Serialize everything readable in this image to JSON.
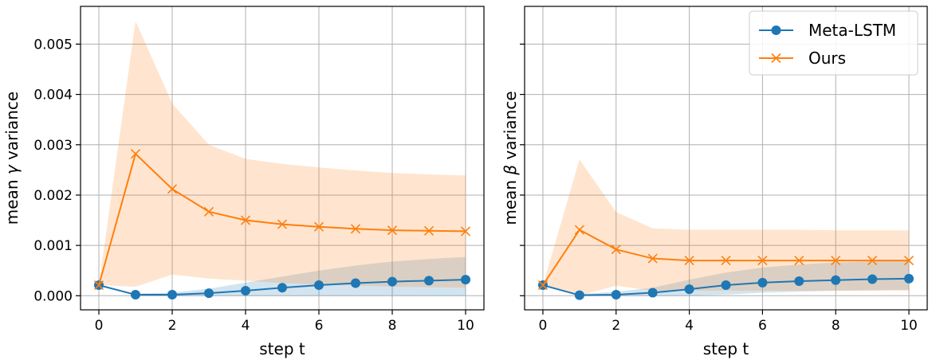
{
  "chart_data": [
    {
      "type": "line",
      "xlabel": "step t",
      "ylabel_prefix": "mean ",
      "ylabel_symbol": "γ",
      "ylabel_suffix": " variance",
      "xlim": [
        -0.5,
        10.5
      ],
      "ylim": [
        -0.00028,
        0.00575
      ],
      "xticks": [
        0,
        2,
        4,
        6,
        8,
        10
      ],
      "xtick_labels": [
        "0",
        "2",
        "4",
        "6",
        "8",
        "10"
      ],
      "yticks": [
        0.0,
        0.001,
        0.002,
        0.003,
        0.004,
        0.005
      ],
      "ytick_labels": [
        "0.000",
        "0.001",
        "0.002",
        "0.003",
        "0.004",
        "0.005"
      ],
      "grid": true,
      "x": [
        0,
        1,
        2,
        3,
        4,
        5,
        6,
        7,
        8,
        9,
        10
      ],
      "series": [
        {
          "name": "Meta-LSTM",
          "color": "#1f77b4",
          "marker": "circle",
          "values": [
            0.00021,
            2e-05,
            2e-05,
            5e-05,
            0.0001,
            0.00016,
            0.00021,
            0.00025,
            0.00028,
            0.0003,
            0.00032
          ],
          "band_lower": [
            0.00021,
            0.0,
            0.0,
            0.0,
            0.0,
            0.0,
            0.0,
            0.0,
            0.0,
            0.0,
            0.0
          ],
          "band_upper": [
            0.00021,
            4e-05,
            6e-05,
            0.00014,
            0.00026,
            0.00038,
            0.0005,
            0.0006,
            0.00068,
            0.00073,
            0.00077
          ],
          "band_color": "#1f77b4"
        },
        {
          "name": "Ours",
          "color": "#ff7f0e",
          "marker": "x",
          "values": [
            0.00021,
            0.00282,
            0.00212,
            0.00167,
            0.0015,
            0.00142,
            0.00137,
            0.00133,
            0.0013,
            0.00129,
            0.00128
          ],
          "band_lower": [
            0.00021,
            0.00018,
            0.00042,
            0.00034,
            0.0003,
            0.00025,
            0.00022,
            0.0002,
            0.00018,
            0.00017,
            0.00016
          ],
          "band_upper": [
            0.00021,
            0.00546,
            0.00382,
            0.003,
            0.00272,
            0.00262,
            0.00255,
            0.00249,
            0.00244,
            0.00241,
            0.00239
          ],
          "band_color": "#ff7f0e"
        }
      ]
    },
    {
      "type": "line",
      "xlabel": "step t",
      "ylabel_prefix": "mean ",
      "ylabel_symbol": "β",
      "ylabel_suffix": " variance",
      "xlim": [
        -0.5,
        10.5
      ],
      "ylim": [
        -0.00028,
        0.00575
      ],
      "xticks": [
        0,
        2,
        4,
        6,
        8,
        10
      ],
      "xtick_labels": [
        "0",
        "2",
        "4",
        "6",
        "8",
        "10"
      ],
      "yticks": [
        0.0,
        0.001,
        0.002,
        0.003,
        0.004,
        0.005
      ],
      "ytick_labels": [],
      "grid": true,
      "legend": "top-right",
      "x": [
        0,
        1,
        2,
        3,
        4,
        5,
        6,
        7,
        8,
        9,
        10
      ],
      "series": [
        {
          "name": "Meta-LSTM",
          "color": "#1f77b4",
          "marker": "circle",
          "values": [
            0.00021,
            1e-05,
            2e-05,
            6e-05,
            0.00013,
            0.00021,
            0.00026,
            0.00029,
            0.00031,
            0.00033,
            0.00034
          ],
          "band_lower": [
            0.00021,
            0.0,
            0.0,
            0.0,
            0.0,
            2e-05,
            6e-05,
            8e-05,
            0.0001,
            0.00011,
            0.00012
          ],
          "band_upper": [
            0.00021,
            3e-05,
            8e-05,
            0.00016,
            0.00032,
            0.00046,
            0.00056,
            0.00062,
            0.00066,
            0.00068,
            0.0007
          ],
          "band_color": "#1f77b4"
        },
        {
          "name": "Ours",
          "color": "#ff7f0e",
          "marker": "x",
          "values": [
            0.00021,
            0.00131,
            0.00092,
            0.00074,
            0.0007,
            0.0007,
            0.0007,
            0.0007,
            0.0007,
            0.0007,
            0.0007
          ],
          "band_lower": [
            0.00021,
            0.0,
            0.0002,
            0.0001,
            0.0001,
            0.0001,
            0.0001,
            0.0001,
            0.0001,
            0.0001,
            0.0001
          ],
          "band_upper": [
            0.00021,
            0.00271,
            0.00166,
            0.00134,
            0.00131,
            0.00131,
            0.00131,
            0.00131,
            0.0013,
            0.0013,
            0.0013
          ],
          "band_color": "#ff7f0e"
        }
      ]
    }
  ]
}
